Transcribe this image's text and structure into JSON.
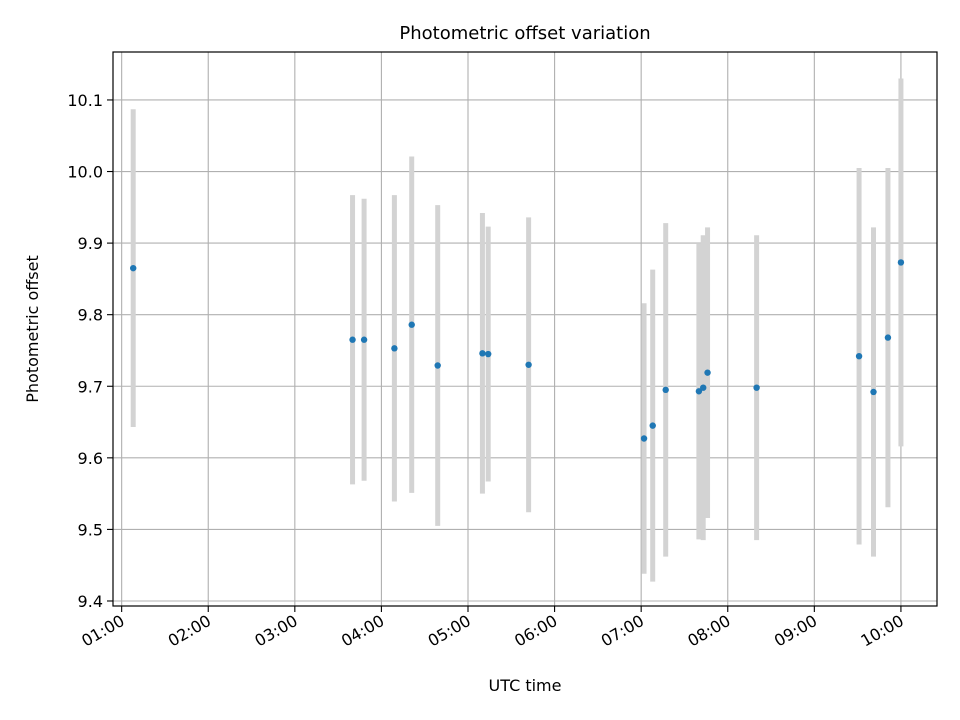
{
  "chart_data": {
    "type": "scatter",
    "title": "Photometric offset variation",
    "xlabel": "UTC time",
    "ylabel": "Photometric offset",
    "x_unit": "time of day (HH:MM)",
    "xlim": [
      "00:54",
      "10:25"
    ],
    "ylim": [
      9.393,
      10.167
    ],
    "x_ticks": [
      "01:00",
      "02:00",
      "03:00",
      "04:00",
      "05:00",
      "06:00",
      "07:00",
      "08:00",
      "09:00",
      "10:00"
    ],
    "y_ticks": [
      9.4,
      9.5,
      9.6,
      9.7,
      9.8,
      9.9,
      10.0,
      10.1
    ],
    "grid": true,
    "legend": "none",
    "colors": {
      "point": "#1f77b4",
      "errorbar": "#d3d3d3",
      "grid": "#b0b0b0",
      "axes": "#000000"
    },
    "series": [
      {
        "points": [
          {
            "x": "01:08",
            "y": 9.865,
            "err": 0.222
          },
          {
            "x": "03:40",
            "y": 9.765,
            "err": 0.202
          },
          {
            "x": "03:48",
            "y": 9.765,
            "err": 0.197
          },
          {
            "x": "04:09",
            "y": 9.753,
            "err": 0.214
          },
          {
            "x": "04:21",
            "y": 9.786,
            "err": 0.235
          },
          {
            "x": "04:39",
            "y": 9.729,
            "err": 0.224
          },
          {
            "x": "05:10",
            "y": 9.746,
            "err": 0.196
          },
          {
            "x": "05:14",
            "y": 9.745,
            "err": 0.178
          },
          {
            "x": "05:42",
            "y": 9.73,
            "err": 0.206
          },
          {
            "x": "07:02",
            "y": 9.627,
            "err": 0.189
          },
          {
            "x": "07:08",
            "y": 9.645,
            "err": 0.218
          },
          {
            "x": "07:17",
            "y": 9.695,
            "err": 0.233
          },
          {
            "x": "07:40",
            "y": 9.693,
            "err": 0.207
          },
          {
            "x": "07:43",
            "y": 9.698,
            "err": 0.213
          },
          {
            "x": "07:46",
            "y": 9.719,
            "err": 0.203
          },
          {
            "x": "08:20",
            "y": 9.698,
            "err": 0.213
          },
          {
            "x": "09:31",
            "y": 9.742,
            "err": 0.263
          },
          {
            "x": "09:41",
            "y": 9.692,
            "err": 0.23
          },
          {
            "x": "09:51",
            "y": 9.768,
            "err": 0.237
          },
          {
            "x": "10:00",
            "y": 9.873,
            "err": 0.257
          }
        ]
      }
    ]
  }
}
